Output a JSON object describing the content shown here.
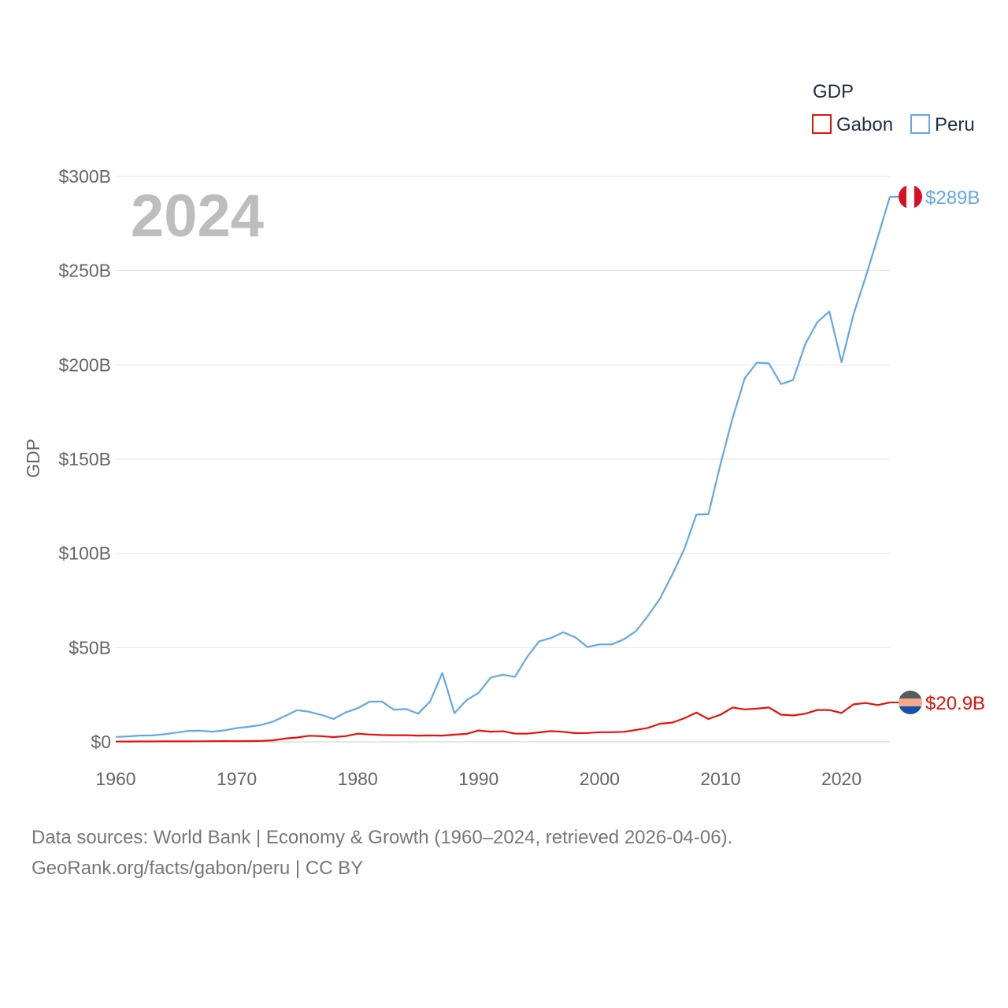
{
  "chart_data": {
    "type": "line",
    "title": "",
    "year_label": "2024",
    "xlabel": "",
    "ylabel": "GDP",
    "xlim": [
      1960,
      2024
    ],
    "ylim": [
      0,
      300
    ],
    "y_unit": "billion USD",
    "grid": true,
    "legend": {
      "title": "GDP",
      "position": "top-right"
    },
    "x_ticks": [
      "1960",
      "1970",
      "1980",
      "1990",
      "2000",
      "2010",
      "2020"
    ],
    "y_ticks": [
      "$0",
      "$50B",
      "$100B",
      "$150B",
      "$200B",
      "$250B",
      "$300B"
    ],
    "series": [
      {
        "name": "Gabon",
        "color": "#e3120b",
        "end_label": "$20.9B",
        "flag": "gabon-flag-icon",
        "flag_colors": [
          "#555b63",
          "#f5a88a",
          "#1552a8"
        ],
        "x_start": 1960,
        "values": [
          0.14,
          0.17,
          0.19,
          0.2,
          0.23,
          0.25,
          0.27,
          0.29,
          0.32,
          0.36,
          0.32,
          0.38,
          0.5,
          0.8,
          1.7,
          2.3,
          3.2,
          3.0,
          2.5,
          3.0,
          4.3,
          3.9,
          3.6,
          3.5,
          3.5,
          3.3,
          3.4,
          3.3,
          3.8,
          4.2,
          6.0,
          5.4,
          5.6,
          4.4,
          4.3,
          5.0,
          5.7,
          5.3,
          4.6,
          4.7,
          5.1,
          5.1,
          5.3,
          6.3,
          7.4,
          9.6,
          10.2,
          12.5,
          15.5,
          12.1,
          14.4,
          18.2,
          17.2,
          17.6,
          18.2,
          14.4,
          14.0,
          14.9,
          16.9,
          16.9,
          15.3,
          19.9,
          20.6,
          19.5,
          20.9
        ]
      },
      {
        "name": "Peru",
        "color": "#64a7e8",
        "end_label": "$289B",
        "flag": "peru-flag-icon",
        "flag_colors": [
          "#d91023",
          "#ffffff",
          "#d91023"
        ],
        "x_start": 1960,
        "values": [
          2.6,
          2.9,
          3.3,
          3.4,
          4.0,
          4.9,
          5.8,
          5.9,
          5.4,
          6.1,
          7.3,
          8.0,
          8.9,
          10.7,
          13.7,
          16.8,
          15.9,
          14.3,
          12.1,
          15.6,
          17.8,
          21.3,
          21.4,
          17.0,
          17.4,
          14.9,
          21.5,
          36.6,
          15.2,
          22.1,
          26.0,
          34.1,
          35.6,
          34.5,
          44.9,
          53.3,
          55.1,
          58.1,
          55.4,
          50.3,
          51.7,
          51.7,
          54.4,
          58.7,
          66.8,
          76.1,
          88.6,
          102.2,
          120.6,
          120.8,
          147.5,
          171.8,
          192.9,
          201.2,
          200.8,
          189.8,
          191.9,
          211.0,
          222.6,
          228.3,
          201.4,
          226.9,
          246.7,
          267.6,
          289.2
        ]
      }
    ],
    "sources": "Data sources: World Bank | Economy & Growth (1960–2024, retrieved 2026-04-06).",
    "credit": "GeoRank.org/facts/gabon/peru | CC BY"
  }
}
